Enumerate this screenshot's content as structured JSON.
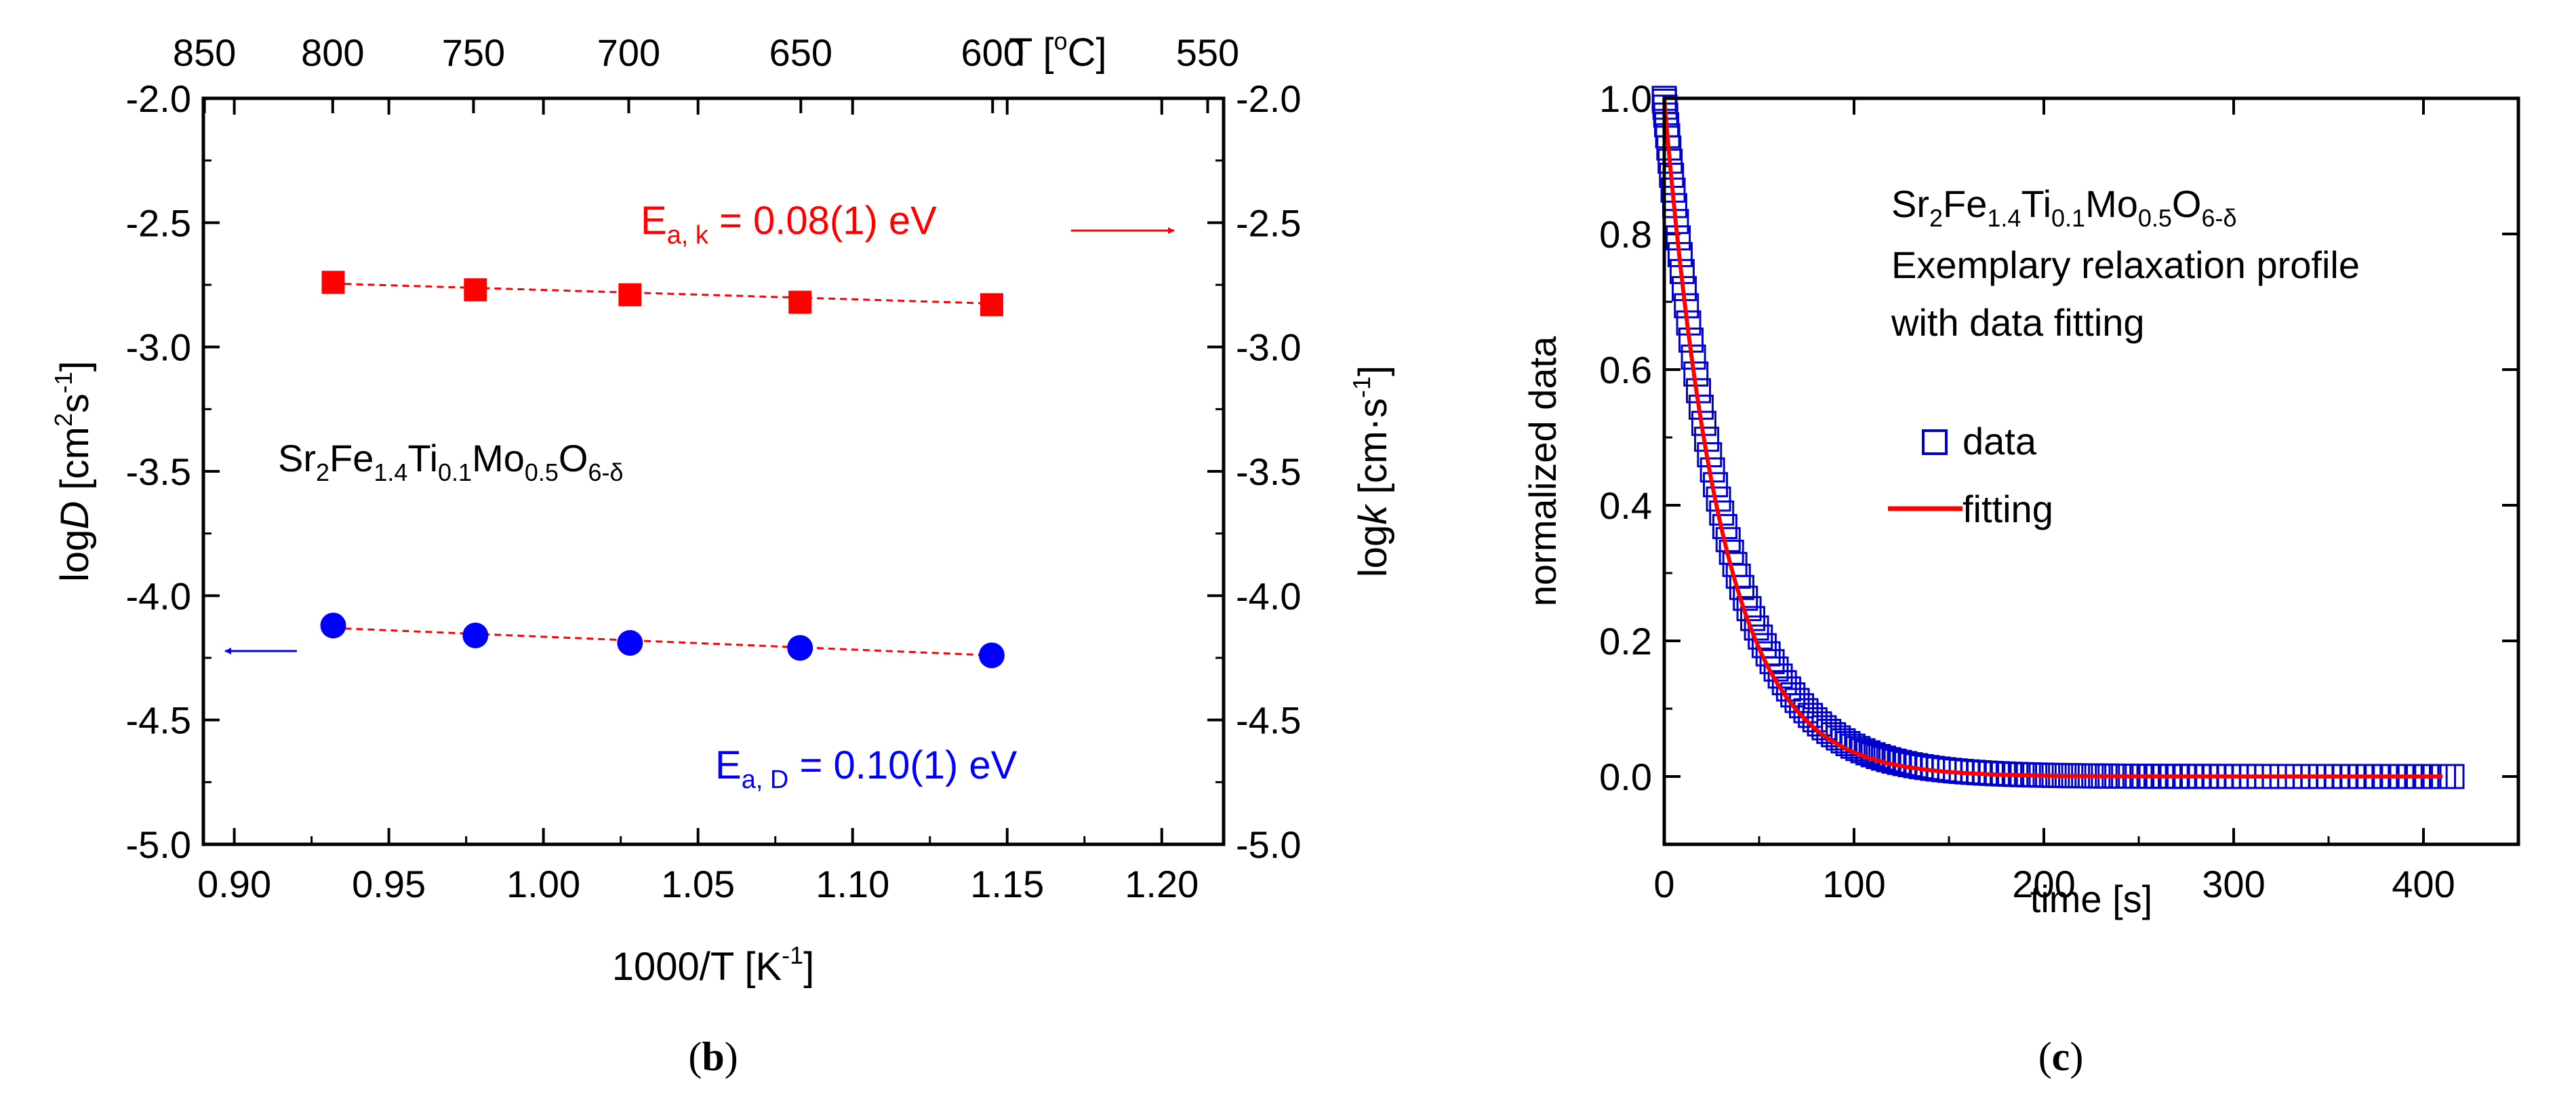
{
  "chart_data": [
    {
      "type": "scatter",
      "panel_label": "b",
      "title": "",
      "xlabel": "1000/T [K",
      "xlabel_sup": "-1",
      "xlabel_end": "]",
      "xlim": [
        0.89,
        1.22
      ],
      "xticks": [
        "0.90",
        "0.95",
        "1.00",
        "1.05",
        "1.10",
        "1.15",
        "1.20"
      ],
      "xtick_values": [
        0.9,
        0.95,
        1.0,
        1.05,
        1.1,
        1.15,
        1.2
      ],
      "ylim": [
        -5.0,
        -2.0
      ],
      "yticks": [
        "-5.0",
        "-4.5",
        "-4.0",
        "-3.5",
        "-3.0",
        "-2.5",
        "-2.0"
      ],
      "ytick_values": [
        -5.0,
        -4.5,
        -4.0,
        -3.5,
        -3.0,
        -2.5,
        -2.0
      ],
      "ylabel_left": {
        "pre": "log",
        "italic": "D",
        "post": " [cm",
        "sup1": "2",
        "mid": "s",
        "sup2": "-1",
        "end": "]"
      },
      "ylabel_right": {
        "pre": "log",
        "italic": "k",
        "post": " [cm·s",
        "sup": "-1",
        "end": "]"
      },
      "top_axis": {
        "label": "T [",
        "label_sup": "o",
        "label_end": "C]",
        "tick_labels": [
          "850",
          "800",
          "750",
          "700",
          "650",
          "600",
          "550"
        ],
        "tick_values": [
          850,
          800,
          750,
          700,
          650,
          600,
          550
        ]
      },
      "compound": {
        "a": "Sr",
        "b": "2",
        "c": "Fe",
        "d": "1.4",
        "e": "Ti",
        "f": "0.1",
        "g": "Mo",
        "h": "0.5",
        "i": "O",
        "j": "6-δ"
      },
      "series": [
        {
          "name": "log k",
          "axis": "right",
          "marker": "square",
          "color": "#ff0000",
          "x": [
            0.932,
            0.978,
            1.028,
            1.083,
            1.145
          ],
          "y": [
            -2.74,
            -2.77,
            -2.79,
            -2.82,
            -2.83
          ],
          "fit_line": [
            [
              0.932,
              -2.745
            ],
            [
              1.145,
              -2.825
            ]
          ]
        },
        {
          "name": "log D",
          "axis": "left",
          "marker": "circle",
          "color": "#0000ff",
          "x": [
            0.932,
            0.978,
            1.028,
            1.083,
            1.145
          ],
          "y": [
            -4.12,
            -4.16,
            -4.19,
            -4.21,
            -4.24
          ],
          "fit_line": [
            [
              0.932,
              -4.13
            ],
            [
              1.145,
              -4.24
            ]
          ]
        }
      ],
      "annotations": [
        {
          "id": "ea_k",
          "color": "#ff0000",
          "pre": "E",
          "sub": "a, k",
          "post": " = 0.08(1) eV"
        },
        {
          "id": "ea_d",
          "color": "#0000ff",
          "pre": "E",
          "sub": "a, D",
          "post": " = 0.10(1) eV"
        }
      ]
    },
    {
      "type": "scatter",
      "panel_label": "c",
      "title": "",
      "xlabel": "time [s]",
      "ylabel": "normalized data",
      "xlim": [
        0,
        450
      ],
      "xticks": [
        "0",
        "100",
        "200",
        "300",
        "400"
      ],
      "xtick_values": [
        0,
        100,
        200,
        300,
        400
      ],
      "ylim": [
        -0.1,
        1.0
      ],
      "yticks": [
        "0.0",
        "0.2",
        "0.4",
        "0.6",
        "0.8",
        "1.0"
      ],
      "ytick_values": [
        0.0,
        0.2,
        0.4,
        0.6,
        0.8,
        1.0
      ],
      "compound": {
        "a": "Sr",
        "b": "2",
        "c": "Fe",
        "d": "1.4",
        "e": "Ti",
        "f": "0.1",
        "g": "Mo",
        "h": "0.5",
        "i": "O",
        "j": "6-δ"
      },
      "text_lines": [
        "Exemplary relaxation profile",
        "with data fitting"
      ],
      "series": [
        {
          "name": "data",
          "marker": "open-square",
          "color": "#0000cc",
          "model": "exponential decay",
          "y0": 1.0,
          "tau": 32.0,
          "t_start": 0,
          "t_end": 415,
          "points": 150
        },
        {
          "name": "fitting",
          "marker": "line",
          "color": "#ff0000",
          "model": "exponential decay",
          "y0": 1.0,
          "tau": 30.0,
          "t_start": 0,
          "t_end": 410
        }
      ],
      "legend": {
        "position": "center-right",
        "entries": [
          "data",
          "fitting"
        ]
      }
    }
  ]
}
